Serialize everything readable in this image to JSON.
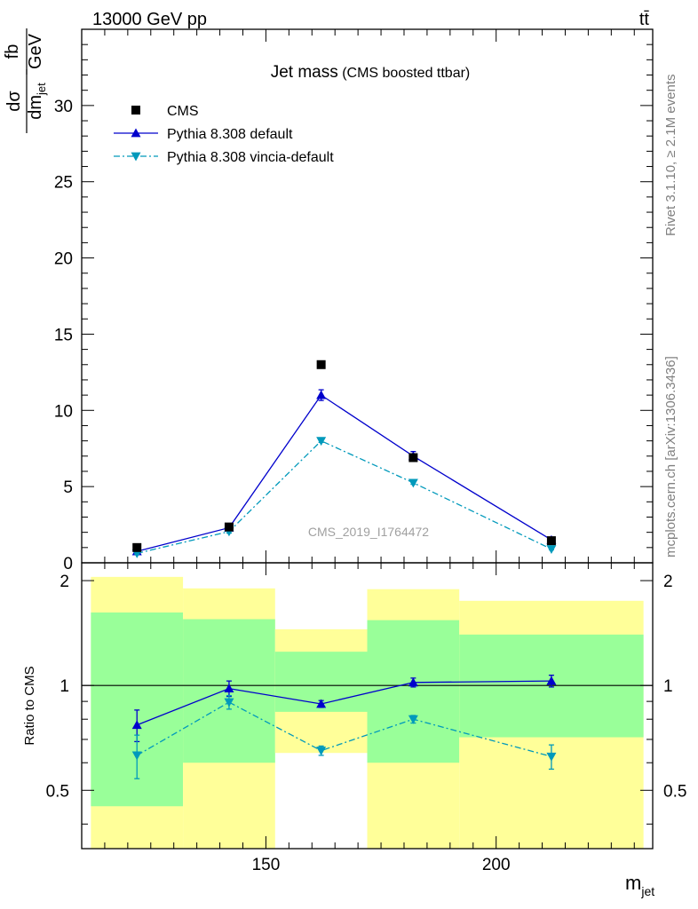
{
  "header": {
    "left": "13000 GeV pp",
    "right": "tt̄"
  },
  "side_text": {
    "rivet": "Rivet 3.1.10, ≥ 2.1M events",
    "mcplots": "mcplots.cern.ch [arXiv:1306.3436]"
  },
  "watermark": "CMS_2019_I1764472",
  "ylabel_main": {
    "num": "dσ",
    "den": "dm",
    "den_sub": "jet",
    "unit_num": "fb",
    "unit_den": "GeV"
  },
  "colors": {
    "data": "#000000",
    "default": "#0000cc",
    "vincia": "#0099bb",
    "band_inner": "#99ff99",
    "band_outer": "#ffff99"
  },
  "chart_data": [
    {
      "type": "line",
      "title": "Jet mass",
      "subtitle": "(CMS boosted ttbar)",
      "xlim": [
        110,
        234
      ],
      "ylim": [
        0,
        35
      ],
      "yticks": [
        0,
        5,
        10,
        15,
        20,
        25,
        30
      ],
      "legend_position": "top-left",
      "series": [
        {
          "name": "CMS",
          "marker": "square",
          "x": [
            122,
            142,
            162,
            182,
            212
          ],
          "y": [
            1.0,
            2.35,
            13.0,
            6.9,
            1.45
          ]
        },
        {
          "name": "Pythia 8.308 default",
          "marker": "triangle-up",
          "line": "solid",
          "x": [
            122,
            142,
            162,
            182,
            212
          ],
          "y": [
            0.75,
            2.3,
            11.0,
            7.0,
            1.5
          ],
          "err": [
            0.05,
            0.1,
            0.35,
            0.3,
            0.1
          ]
        },
        {
          "name": "Pythia 8.308 vincia-default",
          "marker": "triangle-down",
          "line": "dashdot",
          "x": [
            122,
            142,
            162,
            182,
            212
          ],
          "y": [
            0.62,
            2.05,
            8.0,
            5.25,
            0.9
          ],
          "err": [
            0.05,
            0.1,
            0.1,
            0.1,
            0.05
          ]
        }
      ]
    },
    {
      "type": "line",
      "ylabel": "Ratio to CMS",
      "xlabel": "m",
      "xlabel_sub": "jet",
      "xlim": [
        110,
        234
      ],
      "ylim": [
        0.34,
        2.25
      ],
      "yscale": "log",
      "yticks": [
        0.5,
        1,
        2
      ],
      "xticks": [
        150,
        200
      ],
      "reference_line": 1,
      "bands": [
        {
          "x0": 112,
          "x1": 132,
          "inner": [
            0.45,
            1.62
          ],
          "outer": [
            0.34,
            2.05
          ]
        },
        {
          "x0": 132,
          "x1": 152,
          "inner": [
            0.6,
            1.55
          ],
          "outer": [
            0.34,
            1.9
          ]
        },
        {
          "x0": 152,
          "x1": 172,
          "inner": [
            0.84,
            1.25
          ],
          "outer": [
            0.64,
            1.45
          ]
        },
        {
          "x0": 172,
          "x1": 192,
          "inner": [
            0.6,
            1.54
          ],
          "outer": [
            0.34,
            1.89
          ]
        },
        {
          "x0": 192,
          "x1": 232,
          "inner": [
            0.71,
            1.4
          ],
          "outer": [
            0.34,
            1.75
          ]
        }
      ],
      "series": [
        {
          "name": "Pythia 8.308 default",
          "marker": "triangle-up",
          "line": "solid",
          "x": [
            122,
            142,
            162,
            182,
            212
          ],
          "y": [
            0.77,
            0.98,
            0.885,
            1.02,
            1.03
          ],
          "err": [
            0.08,
            0.05,
            0.02,
            0.03,
            0.04
          ]
        },
        {
          "name": "Pythia 8.308 vincia-default",
          "marker": "triangle-down",
          "line": "dashdot",
          "x": [
            122,
            142,
            162,
            182,
            212
          ],
          "y": [
            0.63,
            0.895,
            0.65,
            0.8,
            0.625
          ],
          "err": [
            0.09,
            0.04,
            0.02,
            0.02,
            0.05
          ]
        }
      ]
    }
  ]
}
